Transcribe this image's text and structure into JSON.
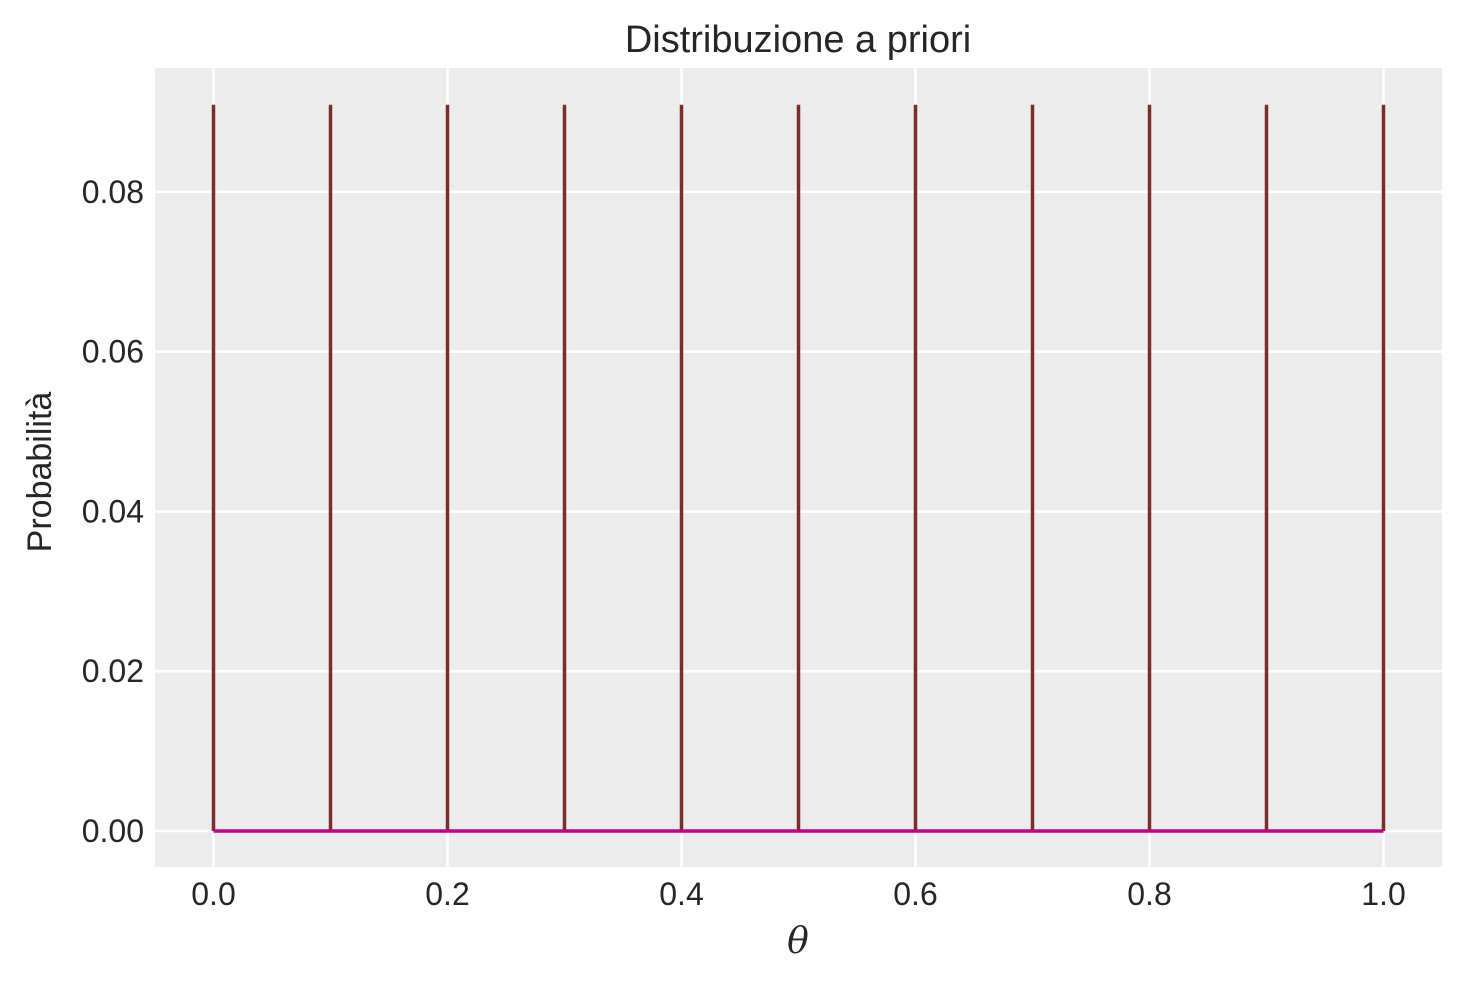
{
  "chart_data": {
    "type": "bar",
    "title": "Distribuzione a priori",
    "xlabel": "θ",
    "ylabel": "Probabilità",
    "x": [
      0.0,
      0.1,
      0.2,
      0.3,
      0.4,
      0.5,
      0.6,
      0.7,
      0.8,
      0.9,
      1.0
    ],
    "values": [
      0.0909,
      0.0909,
      0.0909,
      0.0909,
      0.0909,
      0.0909,
      0.0909,
      0.0909,
      0.0909,
      0.0909,
      0.0909
    ],
    "baseline": 0,
    "xlim": [
      -0.05,
      1.05
    ],
    "ylim": [
      -0.0045,
      0.0955
    ],
    "xticks": [
      0.0,
      0.2,
      0.4,
      0.6,
      0.8,
      1.0
    ],
    "xtick_labels": [
      "0.0",
      "0.2",
      "0.4",
      "0.6",
      "0.8",
      "1.0"
    ],
    "yticks": [
      0.0,
      0.02,
      0.04,
      0.06,
      0.08
    ],
    "ytick_labels": [
      "0.00",
      "0.02",
      "0.04",
      "0.06",
      "0.08"
    ],
    "grid": true,
    "colors": {
      "stem": "#7b2d2a",
      "baseline": "#c0008c",
      "plot_background": "#ececec",
      "grid": "#ffffff"
    }
  }
}
